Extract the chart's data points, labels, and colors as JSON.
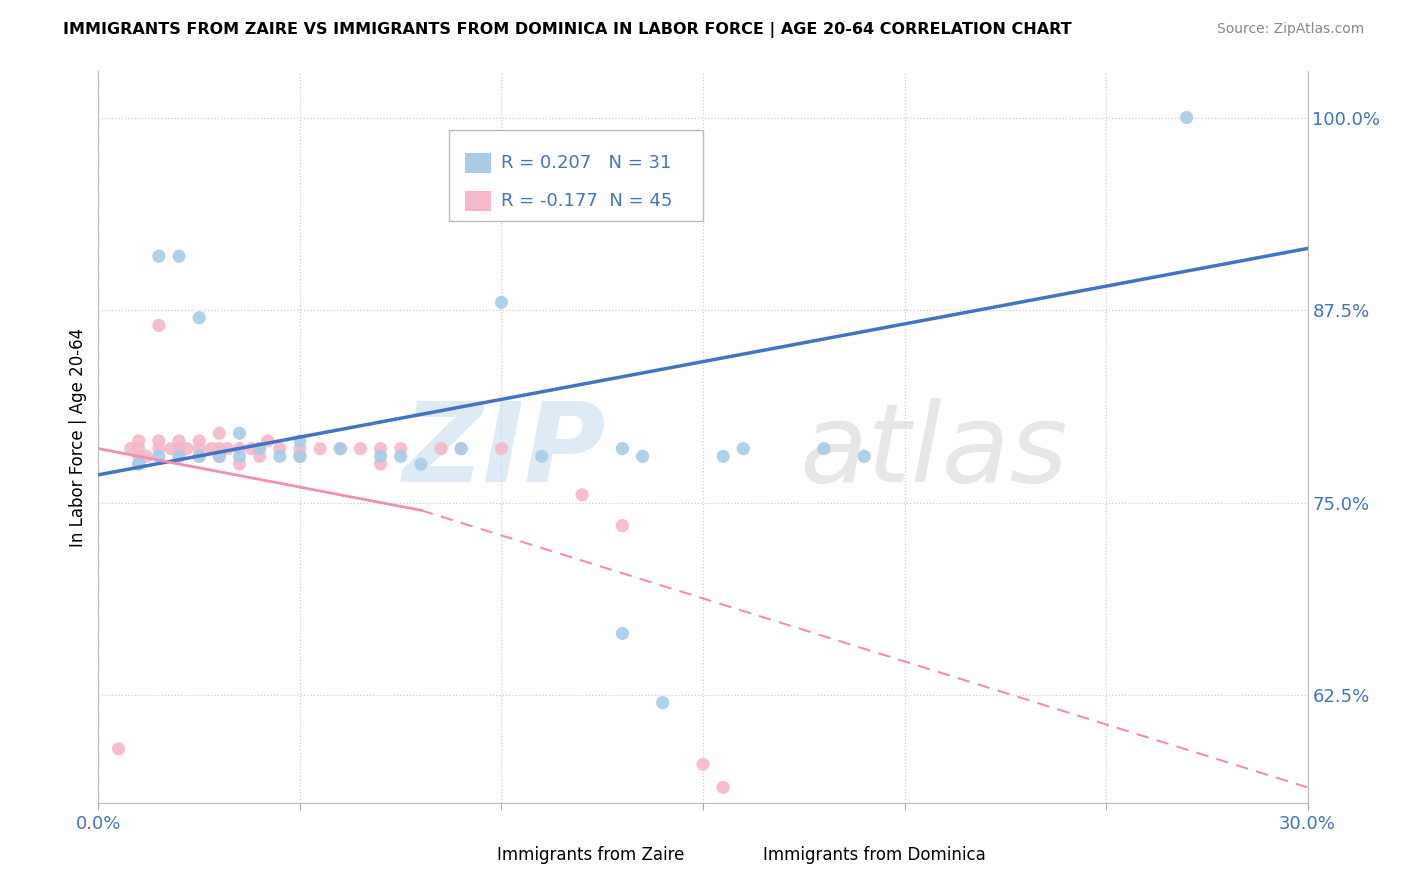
{
  "title": "IMMIGRANTS FROM ZAIRE VS IMMIGRANTS FROM DOMINICA IN LABOR FORCE | AGE 20-64 CORRELATION CHART",
  "source": "Source: ZipAtlas.com",
  "ylabel": "In Labor Force | Age 20-64",
  "xlim": [
    0.0,
    0.3
  ],
  "ylim": [
    0.555,
    1.03
  ],
  "xticks": [
    0.0,
    0.05,
    0.1,
    0.15,
    0.2,
    0.25,
    0.3
  ],
  "xticklabels": [
    "0.0%",
    "",
    "",
    "",
    "",
    "",
    "30.0%"
  ],
  "yticks_right": [
    0.625,
    0.75,
    0.875,
    1.0
  ],
  "ytick_right_labels": [
    "62.5%",
    "75.0%",
    "87.5%",
    "100.0%"
  ],
  "zaire_R": 0.207,
  "zaire_N": 31,
  "dominica_R": -0.177,
  "dominica_N": 45,
  "zaire_color": "#a8cce8",
  "dominica_color": "#f5b8c8",
  "zaire_line_color": "#4472c4",
  "dominica_line_color": "#f090aa",
  "text_color": "#4472c4",
  "zaire_x": [
    0.015,
    0.02,
    0.025,
    0.01,
    0.01,
    0.015,
    0.02,
    0.025,
    0.03,
    0.035,
    0.035,
    0.04,
    0.045,
    0.05,
    0.05,
    0.06,
    0.07,
    0.075,
    0.08,
    0.09,
    0.1,
    0.11,
    0.13,
    0.135,
    0.155,
    0.16,
    0.18,
    0.19,
    0.13,
    0.14,
    0.27
  ],
  "zaire_y": [
    0.91,
    0.91,
    0.87,
    0.775,
    0.775,
    0.78,
    0.78,
    0.78,
    0.78,
    0.78,
    0.795,
    0.785,
    0.78,
    0.78,
    0.79,
    0.785,
    0.78,
    0.78,
    0.775,
    0.785,
    0.88,
    0.78,
    0.785,
    0.78,
    0.78,
    0.785,
    0.785,
    0.78,
    0.665,
    0.62,
    1.0
  ],
  "dominica_x": [
    0.005,
    0.008,
    0.01,
    0.01,
    0.01,
    0.012,
    0.015,
    0.015,
    0.018,
    0.02,
    0.02,
    0.02,
    0.022,
    0.025,
    0.025,
    0.025,
    0.028,
    0.03,
    0.03,
    0.03,
    0.03,
    0.032,
    0.035,
    0.035,
    0.038,
    0.04,
    0.04,
    0.042,
    0.045,
    0.05,
    0.05,
    0.055,
    0.06,
    0.065,
    0.07,
    0.07,
    0.075,
    0.085,
    0.09,
    0.1,
    0.12,
    0.13,
    0.15,
    0.155,
    0.015
  ],
  "dominica_y": [
    0.59,
    0.785,
    0.79,
    0.785,
    0.78,
    0.78,
    0.79,
    0.785,
    0.785,
    0.79,
    0.785,
    0.78,
    0.785,
    0.79,
    0.785,
    0.78,
    0.785,
    0.795,
    0.785,
    0.785,
    0.78,
    0.785,
    0.785,
    0.775,
    0.785,
    0.785,
    0.78,
    0.79,
    0.785,
    0.785,
    0.78,
    0.785,
    0.785,
    0.785,
    0.785,
    0.775,
    0.785,
    0.785,
    0.785,
    0.785,
    0.755,
    0.735,
    0.58,
    0.565,
    0.865
  ],
  "trend_zaire_x0": 0.0,
  "trend_zaire_y0": 0.768,
  "trend_zaire_x1": 0.3,
  "trend_zaire_y1": 0.915,
  "trend_dom_solid_x0": 0.0,
  "trend_dom_solid_y0": 0.785,
  "trend_dom_solid_x1": 0.08,
  "trend_dom_solid_y1": 0.745,
  "trend_dom_dash_x0": 0.08,
  "trend_dom_dash_y0": 0.745,
  "trend_dom_dash_x1": 0.3,
  "trend_dom_dash_y1": 0.565
}
